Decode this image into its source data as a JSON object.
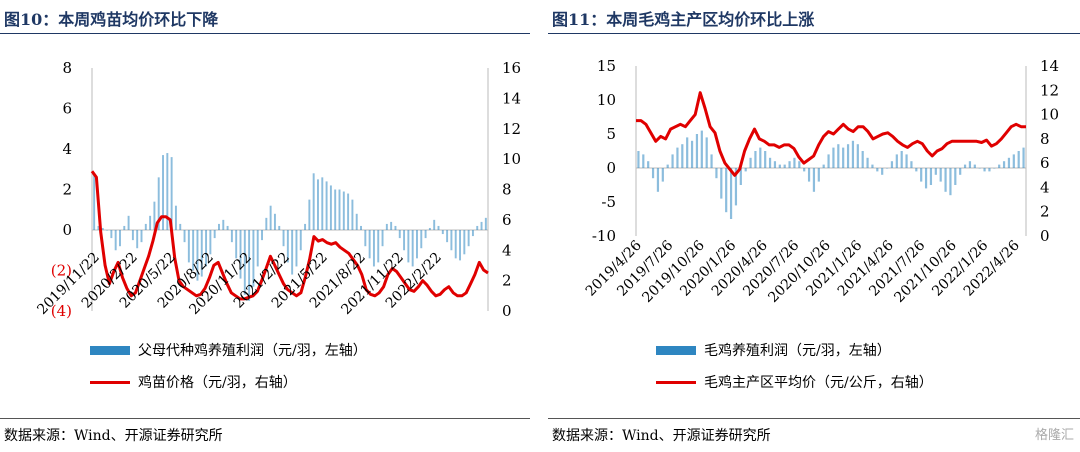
{
  "colors": {
    "bar": "#2e86c1",
    "line": "#e00000",
    "title": "#1f3864",
    "negative_label": "#e00000"
  },
  "left": {
    "title": "图10：本周鸡苗均价环比下降",
    "legend": {
      "bar_label": "父母代种鸡养殖利润（元/羽，左轴）",
      "line_label": "鸡苗价格（元/羽，右轴）"
    },
    "source": "数据来源：Wind、开源证券研究所"
  },
  "right": {
    "title": "图11：本周毛鸡主产区均价环比上涨",
    "legend": {
      "bar_label": "毛鸡养殖利润（元/羽，左轴）",
      "line_label": "毛鸡主产区平均价（元/公斤，右轴）"
    },
    "source": "数据来源：Wind、开源证券研究所",
    "watermark": "格隆汇"
  },
  "chart_data": [
    {
      "type": "bar+line",
      "left_axis": {
        "ylim": [
          -4,
          8
        ],
        "ticks": [
          8,
          6,
          4,
          2,
          0,
          -2,
          -4
        ],
        "tick_labels": [
          "8",
          "6",
          "4",
          "2",
          "0",
          "(2)",
          "(4)"
        ]
      },
      "right_axis": {
        "ylim": [
          0,
          16
        ],
        "ticks": [
          16,
          14,
          12,
          10,
          8,
          6,
          4,
          2,
          0
        ]
      },
      "x_tick_labels": [
        "2019/11/22",
        "2020/2/22",
        "2020/5/22",
        "2020/8/22",
        "2020/11/22",
        "2021/2/22",
        "2021/5/22",
        "2021/8/22",
        "2021/11/22",
        "2022/2/22"
      ],
      "series": [
        {
          "name": "父母代种鸡养殖利润（元/羽，左轴）",
          "axis": "left",
          "kind": "bar",
          "values": [
            2.8,
            0.2,
            0.1,
            0.0,
            -0.4,
            -1.0,
            -0.8,
            0.2,
            0.7,
            -0.5,
            -0.9,
            -0.6,
            0.3,
            0.7,
            1.4,
            2.6,
            3.7,
            3.8,
            3.6,
            1.2,
            0.3,
            -0.6,
            -1.6,
            -2.0,
            -2.5,
            -2.3,
            -1.8,
            -1.2,
            -0.4,
            0.3,
            0.5,
            0.2,
            -0.6,
            -1.4,
            -2.4,
            -3.2,
            -3.5,
            -2.8,
            -1.8,
            -0.5,
            0.6,
            1.2,
            0.8,
            0.2,
            -0.8,
            -1.6,
            -2.2,
            -1.8,
            -1.0,
            0.3,
            1.5,
            2.8,
            2.5,
            2.6,
            2.4,
            2.2,
            2.0,
            2.0,
            1.9,
            1.8,
            1.5,
            0.8,
            0.2,
            -0.8,
            -1.4,
            -1.8,
            -1.6,
            -0.8,
            0.3,
            0.4,
            0.2,
            -0.4,
            -1.0,
            -1.6,
            -1.8,
            -1.4,
            -0.9,
            -0.4,
            0.1,
            0.5,
            0.2,
            -0.2,
            -0.6,
            -1.0,
            -1.4,
            -1.5,
            -1.2,
            -0.8,
            -0.3,
            0.2,
            0.4,
            0.6
          ]
        },
        {
          "name": "鸡苗价格（元/羽，右轴）",
          "axis": "right",
          "kind": "line",
          "values": [
            9.2,
            8.8,
            5.2,
            3.0,
            1.8,
            2.6,
            3.2,
            2.2,
            1.5,
            1.0,
            1.2,
            2.0,
            2.8,
            3.6,
            4.6,
            5.8,
            6.2,
            6.2,
            6.0,
            3.5,
            2.0,
            1.6,
            1.4,
            1.2,
            1.0,
            1.1,
            1.5,
            2.2,
            3.0,
            3.2,
            2.5,
            1.8,
            1.2,
            1.0,
            0.8,
            0.8,
            0.9,
            1.0,
            1.3,
            2.0,
            2.8,
            3.6,
            3.0,
            2.4,
            1.8,
            1.4,
            1.2,
            1.0,
            1.2,
            2.2,
            3.4,
            4.9,
            4.6,
            4.7,
            4.5,
            4.4,
            4.5,
            4.2,
            4.0,
            3.8,
            3.4,
            3.0,
            2.4,
            1.4,
            1.1,
            1.0,
            1.2,
            1.6,
            2.4,
            2.8,
            2.6,
            2.2,
            1.8,
            1.4,
            1.3,
            1.6,
            2.0,
            1.7,
            1.3,
            1.0,
            1.1,
            1.4,
            1.6,
            1.2,
            1.0,
            1.0,
            1.2,
            1.8,
            2.4,
            3.2,
            2.7,
            2.5
          ]
        }
      ]
    },
    {
      "type": "bar+line",
      "left_axis": {
        "ylim": [
          -10,
          15
        ],
        "ticks": [
          15,
          10,
          5,
          0,
          -5,
          -10
        ],
        "tick_labels": [
          "15",
          "10",
          "5",
          "0",
          "-5",
          "-10"
        ]
      },
      "right_axis": {
        "ylim": [
          0,
          14
        ],
        "ticks": [
          14,
          12,
          10,
          8,
          6,
          4,
          2,
          0
        ]
      },
      "x_tick_labels": [
        "2019/4/26",
        "2019/7/26",
        "2019/10/26",
        "2020/1/26",
        "2020/4/26",
        "2020/7/26",
        "2020/10/26",
        "2021/1/26",
        "2021/4/26",
        "2021/7/26",
        "2021/10/26",
        "2022/1/26",
        "2022/4/26"
      ],
      "series": [
        {
          "name": "毛鸡养殖利润（元/羽，左轴）",
          "axis": "left",
          "kind": "bar",
          "values": [
            2.5,
            2.0,
            1.0,
            -1.5,
            -3.5,
            -2.0,
            0.5,
            2.0,
            3.0,
            3.5,
            4.5,
            4.0,
            5.0,
            5.5,
            4.5,
            2.0,
            -1.5,
            -4.5,
            -6.5,
            -7.5,
            -5.5,
            -2.5,
            -0.5,
            1.5,
            2.5,
            3.0,
            2.5,
            1.5,
            1.0,
            0.5,
            0.5,
            1.0,
            1.5,
            1.0,
            -0.5,
            -2.0,
            -3.5,
            -2.0,
            0.5,
            2.0,
            3.0,
            3.5,
            3.0,
            3.5,
            4.0,
            3.5,
            2.5,
            1.5,
            0.5,
            -0.5,
            -1.0,
            0.0,
            1.0,
            2.0,
            2.5,
            2.0,
            1.0,
            -0.5,
            -2.0,
            -3.0,
            -2.5,
            -1.0,
            -2.0,
            -3.5,
            -4.0,
            -2.5,
            -1.0,
            0.5,
            1.0,
            0.5,
            0.0,
            -0.5,
            -0.5,
            0.0,
            0.5,
            1.0,
            1.5,
            2.0,
            2.5,
            3.0
          ]
        },
        {
          "name": "毛鸡主产区平均价（元/公斤，右轴）",
          "axis": "right",
          "kind": "line",
          "values": [
            9.5,
            9.5,
            9.2,
            8.5,
            7.8,
            8.2,
            8.0,
            8.8,
            9.0,
            9.2,
            9.0,
            9.5,
            10.0,
            11.8,
            10.5,
            9.0,
            8.5,
            7.0,
            6.0,
            5.5,
            5.0,
            5.5,
            7.0,
            8.0,
            8.8,
            8.0,
            7.8,
            7.5,
            7.5,
            7.3,
            7.5,
            7.5,
            7.2,
            6.5,
            6.0,
            6.3,
            6.6,
            7.5,
            8.2,
            8.6,
            8.4,
            8.8,
            9.2,
            8.8,
            8.6,
            9.0,
            9.0,
            8.6,
            8.0,
            8.2,
            8.4,
            8.5,
            8.2,
            7.8,
            7.5,
            7.3,
            7.6,
            7.8,
            7.6,
            7.0,
            6.6,
            7.0,
            7.2,
            7.6,
            7.8,
            7.8,
            7.8,
            7.8,
            7.8,
            7.8,
            7.7,
            7.9,
            7.4,
            7.6,
            8.0,
            8.5,
            9.0,
            9.2,
            9.0,
            9.0
          ]
        }
      ]
    }
  ]
}
